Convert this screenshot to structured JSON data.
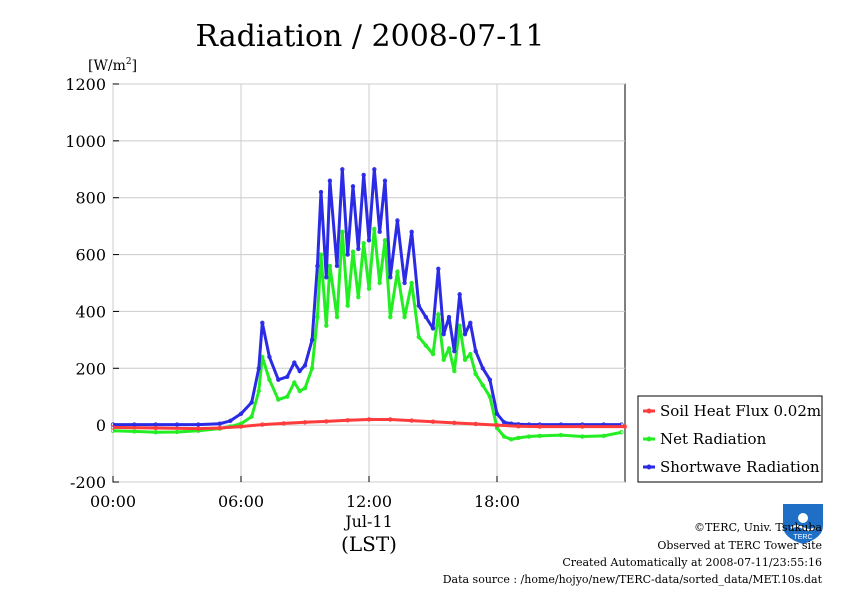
{
  "chart_data": {
    "type": "line",
    "title": "Radiation / 2008-07-11",
    "y_unit": "[W/m",
    "y_unit_sup": "2",
    "y_unit_close": "]",
    "ylim": [
      -200,
      1200
    ],
    "yticks": [
      -200,
      0,
      200,
      400,
      600,
      800,
      1000,
      1200
    ],
    "xlim": [
      "00:00",
      "24:00"
    ],
    "xticks": [
      "00:00",
      "06:00",
      "12:00",
      "18:00"
    ],
    "x_date_label": "Jul-11",
    "x_axis_label": "(LST)",
    "grid": true,
    "legend_position": "right",
    "series": [
      {
        "name": "Soil Heat Flux 0.02m",
        "color": "#ff3b3b",
        "x": [
          "00:00",
          "02:00",
          "04:00",
          "05:00",
          "06:00",
          "07:00",
          "08:00",
          "09:00",
          "10:00",
          "11:00",
          "12:00",
          "13:00",
          "14:00",
          "15:00",
          "16:00",
          "17:00",
          "18:00",
          "19:00",
          "20:00",
          "22:00",
          "24:00"
        ],
        "y": [
          -8,
          -10,
          -12,
          -10,
          -5,
          2,
          6,
          10,
          13,
          17,
          20,
          20,
          16,
          12,
          8,
          4,
          0,
          -4,
          -5,
          -5,
          -5
        ]
      },
      {
        "name": "Net Radiation",
        "color": "#22ee22",
        "x": [
          "00:00",
          "01:00",
          "02:00",
          "03:00",
          "04:00",
          "05:00",
          "05:30",
          "06:00",
          "06:30",
          "06:50",
          "07:00",
          "07:20",
          "07:45",
          "08:10",
          "08:30",
          "08:45",
          "09:00",
          "09:20",
          "09:35",
          "09:45",
          "10:00",
          "10:10",
          "10:30",
          "10:45",
          "11:00",
          "11:15",
          "11:30",
          "11:45",
          "12:00",
          "12:15",
          "12:30",
          "12:45",
          "13:00",
          "13:20",
          "13:40",
          "14:00",
          "14:20",
          "14:40",
          "15:00",
          "15:15",
          "15:30",
          "15:45",
          "16:00",
          "16:15",
          "16:30",
          "16:45",
          "17:00",
          "17:20",
          "17:40",
          "18:00",
          "18:20",
          "18:40",
          "19:00",
          "19:30",
          "20:00",
          "21:00",
          "22:00",
          "23:00",
          "23:50"
        ],
        "y": [
          -20,
          -22,
          -25,
          -24,
          -20,
          -12,
          -5,
          5,
          30,
          120,
          240,
          160,
          90,
          100,
          150,
          120,
          130,
          200,
          380,
          600,
          350,
          560,
          380,
          680,
          420,
          610,
          450,
          640,
          480,
          690,
          500,
          650,
          380,
          540,
          380,
          500,
          310,
          280,
          250,
          390,
          230,
          270,
          190,
          350,
          230,
          250,
          180,
          140,
          100,
          -10,
          -40,
          -50,
          -45,
          -40,
          -38,
          -35,
          -40,
          -38,
          -25
        ]
      },
      {
        "name": "Shortwave Radiation",
        "color": "#2b2be6",
        "x": [
          "00:00",
          "01:00",
          "02:00",
          "03:00",
          "04:00",
          "05:00",
          "05:30",
          "06:00",
          "06:30",
          "06:50",
          "07:00",
          "07:20",
          "07:45",
          "08:10",
          "08:30",
          "08:45",
          "09:00",
          "09:20",
          "09:35",
          "09:45",
          "10:00",
          "10:10",
          "10:30",
          "10:45",
          "11:00",
          "11:15",
          "11:30",
          "11:45",
          "12:00",
          "12:15",
          "12:30",
          "12:45",
          "13:00",
          "13:20",
          "13:40",
          "14:00",
          "14:20",
          "14:40",
          "15:00",
          "15:15",
          "15:30",
          "15:45",
          "16:00",
          "16:15",
          "16:30",
          "16:45",
          "17:00",
          "17:20",
          "17:40",
          "18:00",
          "18:20",
          "18:40",
          "19:00",
          "19:30",
          "20:00",
          "21:00",
          "22:00",
          "23:00",
          "23:50"
        ],
        "y": [
          2,
          2,
          2,
          2,
          2,
          5,
          15,
          40,
          80,
          200,
          360,
          240,
          160,
          170,
          220,
          190,
          210,
          300,
          560,
          820,
          520,
          860,
          560,
          900,
          600,
          840,
          620,
          880,
          650,
          900,
          680,
          860,
          520,
          720,
          500,
          680,
          420,
          380,
          340,
          550,
          320,
          380,
          260,
          460,
          320,
          360,
          260,
          200,
          160,
          40,
          10,
          5,
          3,
          2,
          2,
          2,
          2,
          2,
          2
        ]
      }
    ]
  },
  "credits": {
    "copyright": "©TERC, Univ. Tsukuba",
    "observed": "Observed at TERC Tower site",
    "created": "Created Automatically at 2008-07-11/23:55:16",
    "source": "Data source : /home/hojyo/new/TERC-data/sorted_data/MET.10s.dat"
  },
  "logo": {
    "text": "TERC",
    "color": "#1f6fc6"
  }
}
